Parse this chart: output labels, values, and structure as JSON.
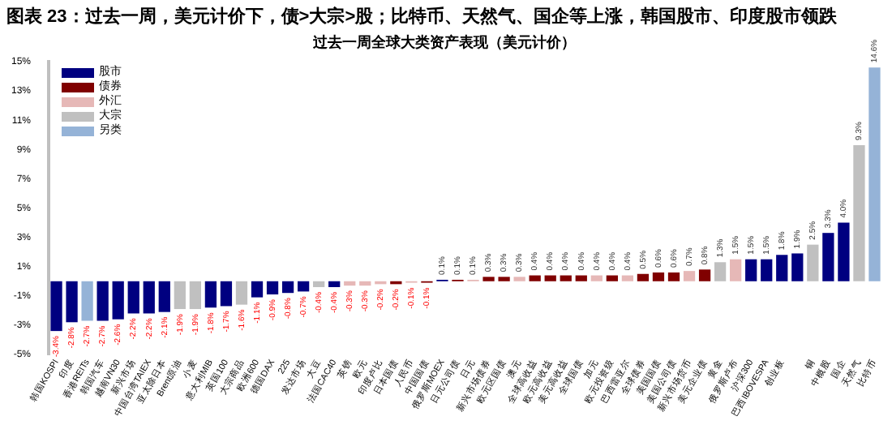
{
  "chart_data": {
    "type": "bar",
    "title": "图表 23：过去一周，美元计价下，债>大宗>股；比特币、天然气、国企等上涨，韩国股市、印度股市领跌",
    "subtitle": "过去一周全球大类资产表现（美元计价）",
    "categories": [
      "韩国KOSPI",
      "印度",
      "香港REITs",
      "韩国汽车",
      "越南VN30",
      "新兴市场",
      "中国台湾TAIEX",
      "亚太除日本",
      "Brent原油",
      "小麦",
      "意大利MIB",
      "英国100",
      "大宗商品",
      "欧洲600",
      "德国DAX",
      "225",
      "发达市场",
      "大豆",
      "法国CAC40",
      "英镑",
      "欧元",
      "印度卢比",
      "日本国债",
      "人民币",
      "中国国债",
      "俄罗斯MOEX",
      "日元公司债",
      "日元",
      "新兴市场债券",
      "欧元区国债",
      "澳元",
      "全球高收益",
      "欧元高收益",
      "美元高收益",
      "全球国债",
      "加元",
      "欧元投资级",
      "巴西雷亚尔",
      "全球债券",
      "美国国债",
      "美国公司债",
      "新兴市场货币",
      "美元企业债",
      "黄金",
      "俄罗斯卢布",
      "沪深300",
      "巴西IBOVESPA",
      "创业板",
      null,
      "铜",
      "中概股",
      "国企",
      "天然气",
      "比特币"
    ],
    "series": [
      {
        "name": "股市",
        "color": "#000080",
        "values": [
          -3.4,
          -2.8,
          null,
          -2.7,
          -2.6,
          -2.2,
          -2.2,
          -2.1,
          null,
          null,
          -1.8,
          -1.7,
          null,
          -1.1,
          -0.9,
          -0.8,
          -0.7,
          null,
          -0.4,
          null,
          null,
          null,
          null,
          null,
          null,
          0.1,
          null,
          null,
          null,
          null,
          null,
          null,
          null,
          null,
          null,
          null,
          null,
          null,
          null,
          null,
          null,
          null,
          null,
          null,
          null,
          1.5,
          1.5,
          1.8,
          1.9,
          null,
          3.3,
          4.0,
          null,
          null
        ],
        "value_labels": [
          "-3.4%",
          "-2.8%",
          null,
          "-2.7%",
          "-2.6%",
          "-2.2%",
          "-2.2%",
          "-2.1%",
          null,
          null,
          "-1.8%",
          "-1.7%",
          null,
          "-1.1%",
          "-0.9%",
          "-0.8%",
          "-0.7%",
          null,
          "-0.4%",
          null,
          null,
          null,
          null,
          null,
          null,
          "0.1%",
          null,
          null,
          null,
          null,
          null,
          null,
          null,
          null,
          null,
          null,
          null,
          null,
          null,
          null,
          null,
          null,
          null,
          null,
          null,
          "1.5%",
          "1.5%",
          "1.8%",
          "1.9%",
          null,
          "3.3%",
          "4.0%",
          null,
          null
        ]
      },
      {
        "name": "债券",
        "color": "#800000",
        "values": [
          null,
          null,
          null,
          null,
          null,
          null,
          null,
          null,
          null,
          null,
          null,
          null,
          null,
          null,
          null,
          null,
          null,
          null,
          null,
          null,
          null,
          null,
          -0.2,
          null,
          -0.1,
          null,
          0.1,
          null,
          0.3,
          0.3,
          null,
          0.4,
          0.4,
          0.4,
          0.4,
          null,
          0.4,
          null,
          0.5,
          0.6,
          0.6,
          null,
          0.8,
          null,
          null,
          null,
          null,
          null,
          null,
          null,
          null,
          null,
          null,
          null
        ],
        "value_labels": [
          null,
          null,
          null,
          null,
          null,
          null,
          null,
          null,
          null,
          null,
          null,
          null,
          null,
          null,
          null,
          null,
          null,
          null,
          null,
          null,
          null,
          null,
          "-0.2%",
          null,
          "-0.1%",
          null,
          "0.1%",
          null,
          "0.3%",
          "0.3%",
          null,
          "0.4%",
          "0.4%",
          "0.4%",
          "0.4%",
          null,
          "0.4%",
          null,
          "0.5%",
          "0.6%",
          "0.6%",
          null,
          "0.8%",
          null,
          null,
          null,
          null,
          null,
          null,
          null,
          null,
          null,
          null,
          null
        ]
      },
      {
        "name": "外汇",
        "color": "#e6b8b7",
        "values": [
          null,
          null,
          null,
          null,
          null,
          null,
          null,
          null,
          null,
          null,
          null,
          null,
          null,
          null,
          null,
          null,
          null,
          null,
          null,
          -0.3,
          -0.3,
          -0.2,
          null,
          -0.1,
          null,
          null,
          null,
          0.1,
          null,
          null,
          0.3,
          null,
          null,
          null,
          null,
          0.4,
          null,
          0.4,
          null,
          null,
          null,
          0.7,
          null,
          null,
          1.5,
          null,
          null,
          null,
          null,
          null,
          null,
          null,
          null,
          null
        ],
        "value_labels": [
          null,
          null,
          null,
          null,
          null,
          null,
          null,
          null,
          null,
          null,
          null,
          null,
          null,
          null,
          null,
          null,
          null,
          null,
          null,
          "-0.3%",
          "-0.3%",
          "-0.2%",
          null,
          "-0.1%",
          null,
          null,
          null,
          "0.1%",
          null,
          null,
          "0.3%",
          null,
          null,
          null,
          null,
          "0.4%",
          null,
          "0.4%",
          null,
          null,
          null,
          "0.7%",
          null,
          null,
          "1.5%",
          null,
          null,
          null,
          null,
          null,
          null,
          null,
          null,
          null
        ]
      },
      {
        "name": "大宗",
        "color": "#c0c0c0",
        "values": [
          null,
          null,
          null,
          null,
          null,
          null,
          null,
          null,
          -1.9,
          -1.9,
          null,
          null,
          -1.6,
          null,
          null,
          null,
          null,
          -0.4,
          null,
          null,
          null,
          null,
          null,
          null,
          null,
          null,
          null,
          null,
          null,
          null,
          null,
          null,
          null,
          null,
          null,
          null,
          null,
          null,
          null,
          null,
          null,
          null,
          null,
          1.3,
          null,
          null,
          null,
          null,
          null,
          2.5,
          null,
          null,
          9.3,
          null
        ],
        "value_labels": [
          null,
          null,
          null,
          null,
          null,
          null,
          null,
          null,
          "-1.9%",
          "-1.9%",
          null,
          null,
          "-1.6%",
          null,
          null,
          null,
          null,
          "-0.4%",
          null,
          null,
          null,
          null,
          null,
          null,
          null,
          null,
          null,
          null,
          null,
          null,
          null,
          null,
          null,
          null,
          null,
          null,
          null,
          null,
          null,
          null,
          null,
          null,
          null,
          "1.3%",
          null,
          null,
          null,
          null,
          null,
          "2.5%",
          null,
          null,
          "9.3%",
          null
        ]
      },
      {
        "name": "另类",
        "color": "#95b3d7",
        "values": [
          null,
          null,
          -2.7,
          null,
          null,
          null,
          null,
          null,
          null,
          null,
          null,
          null,
          null,
          null,
          null,
          null,
          null,
          null,
          null,
          null,
          null,
          null,
          null,
          null,
          null,
          null,
          null,
          null,
          null,
          null,
          null,
          null,
          null,
          null,
          null,
          null,
          null,
          null,
          null,
          null,
          null,
          null,
          null,
          null,
          null,
          null,
          null,
          null,
          null,
          null,
          null,
          null,
          null,
          14.6
        ],
        "value_labels": [
          null,
          null,
          "-2.7%",
          null,
          null,
          null,
          null,
          null,
          null,
          null,
          null,
          null,
          null,
          null,
          null,
          null,
          null,
          null,
          null,
          null,
          null,
          null,
          null,
          null,
          null,
          null,
          null,
          null,
          null,
          null,
          null,
          null,
          null,
          null,
          null,
          null,
          null,
          null,
          null,
          null,
          null,
          null,
          null,
          null,
          null,
          null,
          null,
          null,
          null,
          null,
          null,
          null,
          null,
          "14.6%"
        ]
      }
    ],
    "ylim": [
      -5,
      15
    ],
    "yticks": [
      {
        "value": -5,
        "label": "-5%"
      },
      {
        "value": -3,
        "label": "-3%"
      },
      {
        "value": -1,
        "label": "-1%"
      },
      {
        "value": 1,
        "label": "1%"
      },
      {
        "value": 3,
        "label": "3%"
      },
      {
        "value": 5,
        "label": "5%"
      },
      {
        "value": 7,
        "label": "7%"
      },
      {
        "value": 9,
        "label": "9%"
      },
      {
        "value": 11,
        "label": "11%"
      },
      {
        "value": 13,
        "label": "13%"
      },
      {
        "value": 15,
        "label": "15%"
      }
    ],
    "legend": "top left"
  }
}
